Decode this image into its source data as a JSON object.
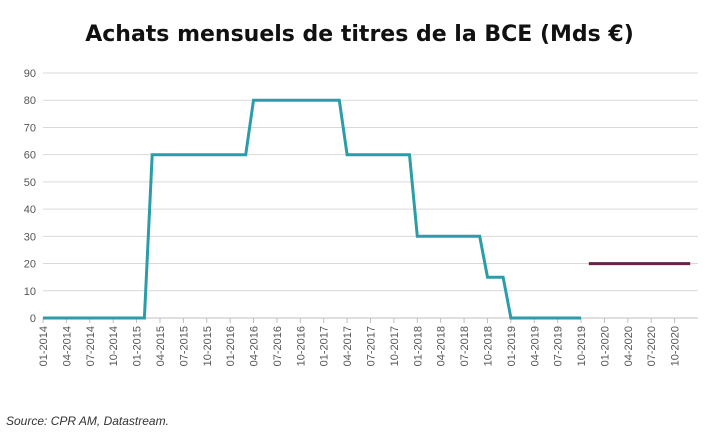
{
  "chart_data": {
    "type": "line",
    "title": "Achats mensuels de titres de la BCE (Mds €)",
    "xlabel": "",
    "ylabel": "",
    "ylim": [
      0,
      90
    ],
    "yticks": [
      0,
      10,
      20,
      30,
      40,
      50,
      60,
      70,
      80,
      90
    ],
    "grid": true,
    "legend": "none",
    "categories": [
      "01-2014",
      "04-2014",
      "07-2014",
      "10-2014",
      "01-2015",
      "04-2015",
      "07-2015",
      "10-2015",
      "01-2016",
      "04-2016",
      "07-2016",
      "10-2016",
      "01-2017",
      "04-2017",
      "07-2017",
      "10-2017",
      "01-2018",
      "04-2018",
      "07-2018",
      "10-2018",
      "01-2019",
      "04-2019",
      "07-2019",
      "10-2019",
      "01-2020",
      "04-2020",
      "07-2020",
      "10-2020"
    ],
    "x_range": [
      "01-2014",
      "12-2020"
    ],
    "series": [
      {
        "color": "#2a9da8",
        "points": [
          [
            "01-2014",
            0
          ],
          [
            "02-2015",
            0
          ],
          [
            "03-2015",
            60
          ],
          [
            "03-2016",
            60
          ],
          [
            "04-2016",
            80
          ],
          [
            "03-2017",
            80
          ],
          [
            "04-2017",
            60
          ],
          [
            "12-2017",
            60
          ],
          [
            "01-2018",
            30
          ],
          [
            "09-2018",
            30
          ],
          [
            "10-2018",
            15
          ],
          [
            "12-2018",
            15
          ],
          [
            "01-2019",
            0
          ],
          [
            "10-2019",
            0
          ]
        ]
      },
      {
        "color": "#6b1f4a",
        "points": [
          [
            "11-2019",
            20
          ],
          [
            "12-2020",
            20
          ]
        ]
      }
    ]
  },
  "source": "Source: CPR AM, Datastream."
}
